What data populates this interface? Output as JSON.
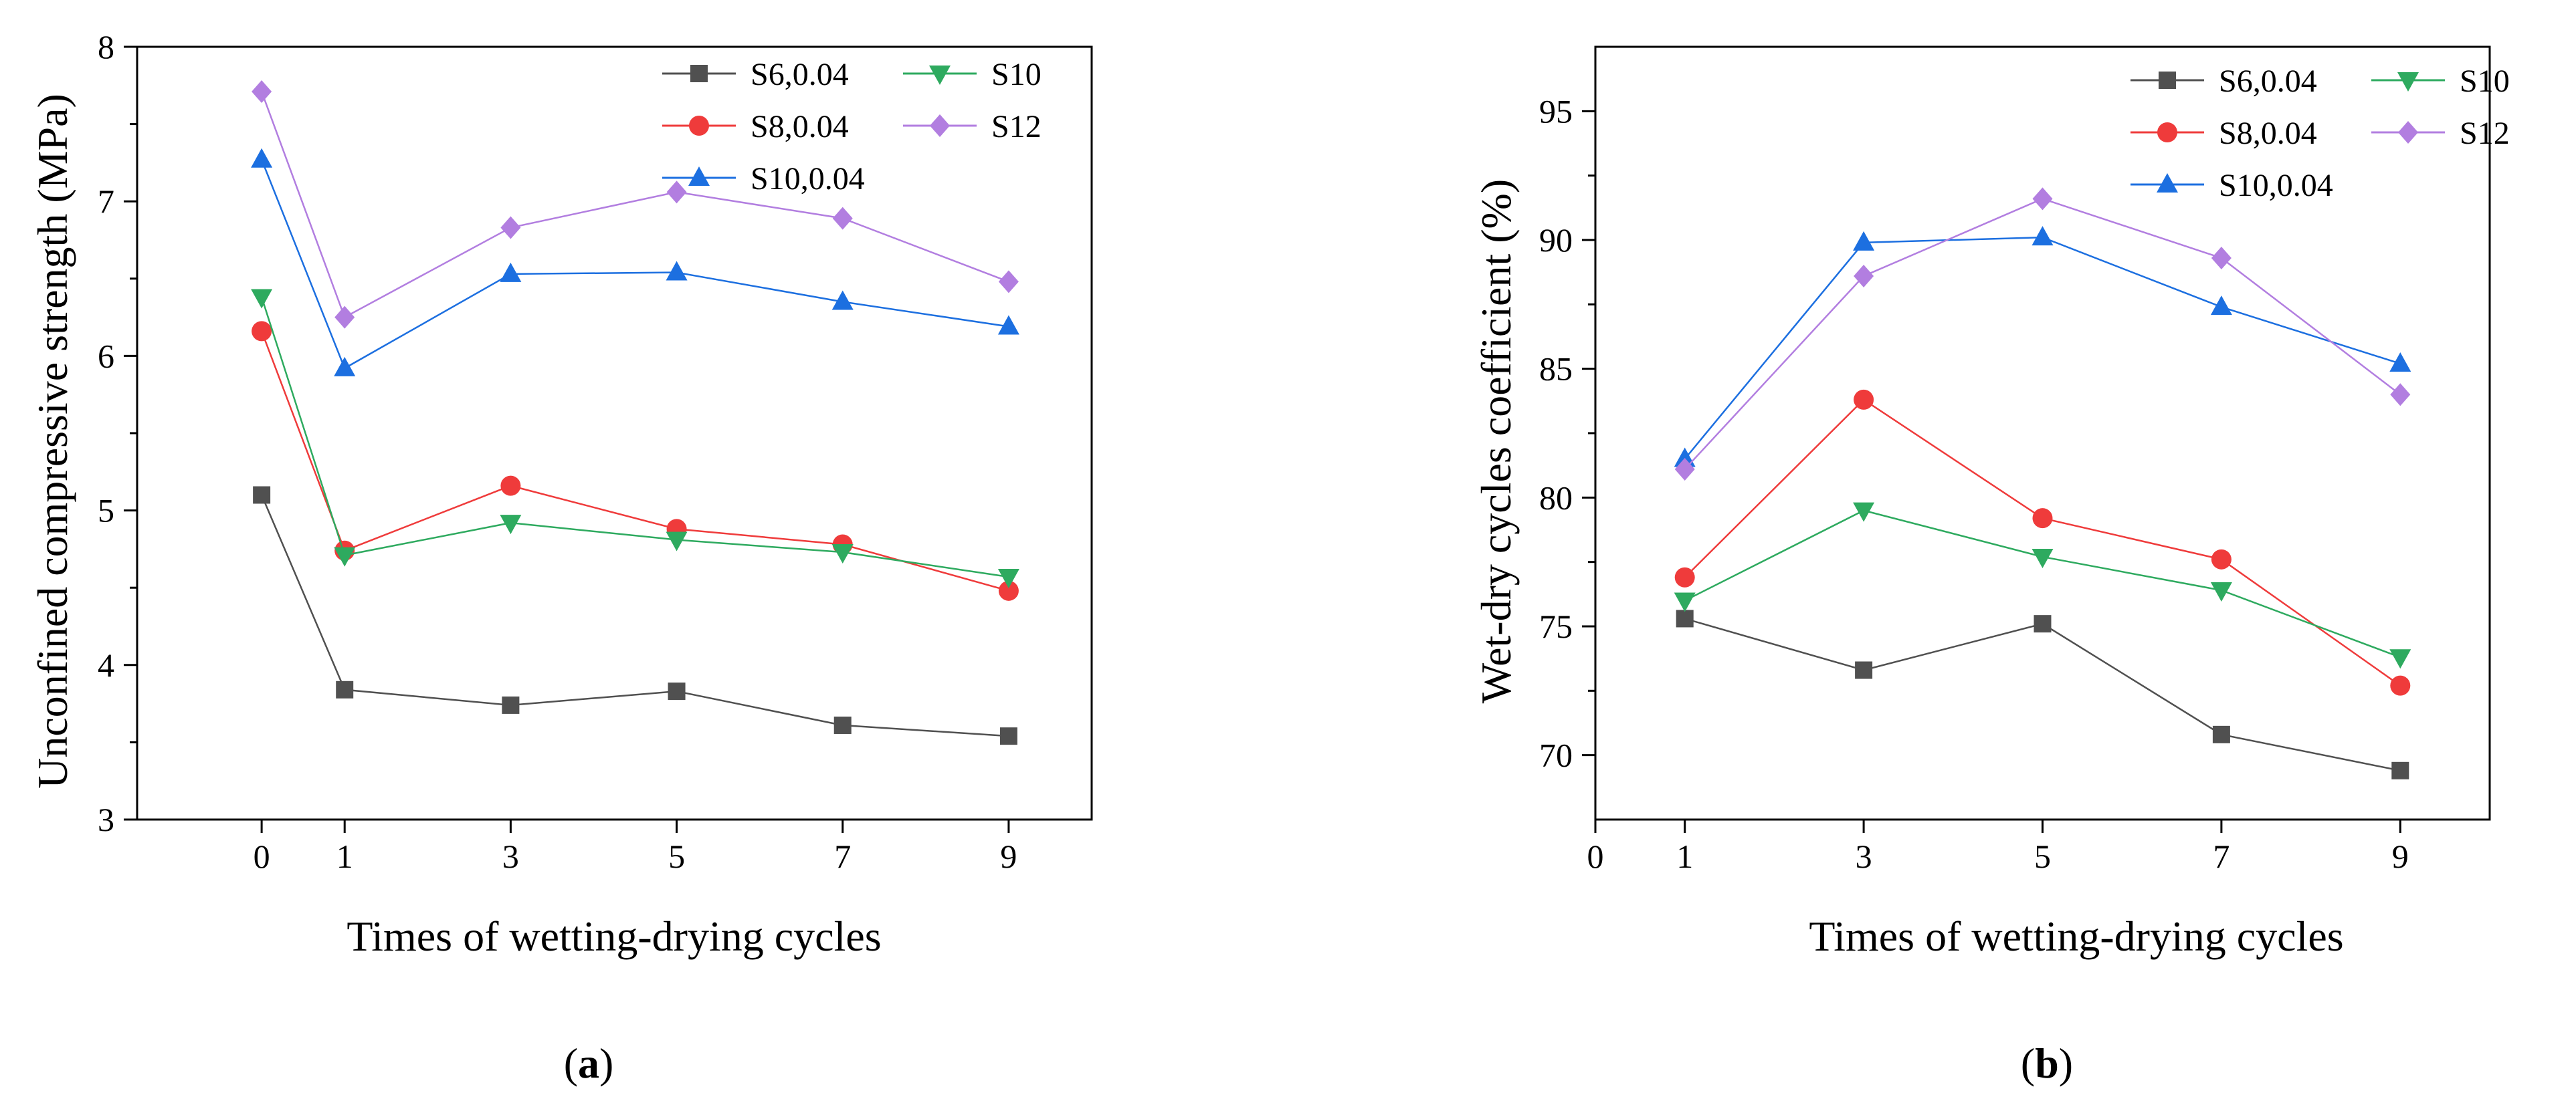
{
  "chart_data": [
    {
      "id": "a",
      "type": "line",
      "panel_label": "a",
      "xlabel": "Times of wetting-drying cycles",
      "ylabel": "Unconfined compressive strength (MPa)",
      "xlim": [
        -1.5,
        10
      ],
      "ylim": [
        3,
        8
      ],
      "xticks": [
        0,
        1,
        3,
        5,
        7,
        9
      ],
      "yticks": [
        3,
        4,
        5,
        6,
        7,
        8
      ],
      "x": [
        0,
        1,
        3,
        5,
        7,
        9
      ],
      "series": [
        {
          "name": "S6,0.04",
          "color": "#505050",
          "marker": "square",
          "values": [
            5.1,
            3.84,
            3.74,
            3.83,
            3.61,
            3.54
          ]
        },
        {
          "name": "S8,0.04",
          "color": "#ef3b3b",
          "marker": "circle",
          "values": [
            6.16,
            4.74,
            5.16,
            4.88,
            4.78,
            4.48
          ]
        },
        {
          "name": "S10,0.04",
          "color": "#1c6fe0",
          "marker": "triangle-up",
          "values": [
            7.27,
            5.92,
            6.53,
            6.54,
            6.35,
            6.19
          ]
        },
        {
          "name": "S10",
          "color": "#2eaa5f",
          "marker": "triangle-down",
          "values": [
            6.38,
            4.71,
            4.92,
            4.81,
            4.73,
            4.57
          ]
        },
        {
          "name": "S12",
          "color": "#b27ee0",
          "marker": "diamond",
          "values": [
            7.71,
            6.25,
            6.83,
            7.06,
            6.89,
            6.48
          ]
        }
      ]
    },
    {
      "id": "b",
      "type": "line",
      "panel_label": "b",
      "xlabel": "Times of wetting-drying cycles",
      "ylabel": "Wet-dry cycles coefficient (%)",
      "xlim": [
        0,
        10
      ],
      "ylim": [
        67.5,
        97.5
      ],
      "xticks": [
        0,
        1,
        3,
        5,
        7,
        9
      ],
      "yticks": [
        70,
        75,
        80,
        85,
        90,
        95
      ],
      "x": [
        1,
        3,
        5,
        7,
        9
      ],
      "series": [
        {
          "name": "S6,0.04",
          "color": "#505050",
          "marker": "square",
          "values": [
            75.3,
            73.3,
            75.1,
            70.8,
            69.4
          ]
        },
        {
          "name": "S8,0.04",
          "color": "#ef3b3b",
          "marker": "circle",
          "values": [
            76.9,
            83.8,
            79.2,
            77.6,
            72.7
          ]
        },
        {
          "name": "S10,0.04",
          "color": "#1c6fe0",
          "marker": "triangle-up",
          "values": [
            81.5,
            89.9,
            90.1,
            87.4,
            85.2
          ]
        },
        {
          "name": "S10",
          "color": "#2eaa5f",
          "marker": "triangle-down",
          "values": [
            76.0,
            79.5,
            77.7,
            76.4,
            73.8
          ]
        },
        {
          "name": "S12",
          "color": "#b27ee0",
          "marker": "diamond",
          "values": [
            81.1,
            88.6,
            91.6,
            89.3,
            84.0
          ]
        }
      ]
    }
  ]
}
